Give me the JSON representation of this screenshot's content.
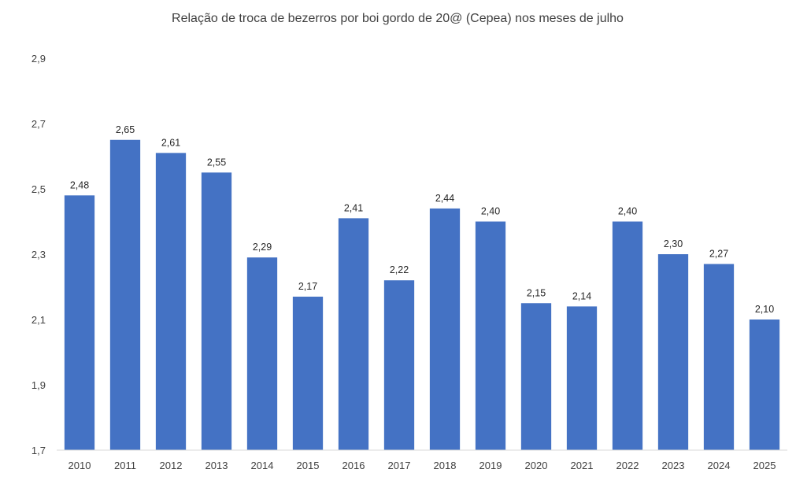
{
  "chart_data": {
    "type": "bar",
    "title": "Relação de troca de bezerros por boi gordo de 20@ (Cepea) nos meses de julho",
    "xlabel": "",
    "ylabel": "",
    "categories": [
      "2010",
      "2011",
      "2012",
      "2013",
      "2014",
      "2015",
      "2016",
      "2017",
      "2018",
      "2019",
      "2020",
      "2021",
      "2022",
      "2023",
      "2024",
      "2025"
    ],
    "values": [
      2.48,
      2.65,
      2.61,
      2.55,
      2.29,
      2.17,
      2.41,
      2.22,
      2.44,
      2.4,
      2.15,
      2.14,
      2.4,
      2.3,
      2.27,
      2.1
    ],
    "value_labels": [
      "2,48",
      "2,65",
      "2,61",
      "2,55",
      "2,29",
      "2,17",
      "2,41",
      "2,22",
      "2,44",
      "2,40",
      "2,15",
      "2,14",
      "2,40",
      "2,30",
      "2,27",
      "2,10"
    ],
    "ylim": [
      1.7,
      2.9
    ],
    "y_ticks": [
      1.7,
      1.9,
      2.1,
      2.3,
      2.5,
      2.7,
      2.9
    ],
    "y_tick_labels": [
      "1,7",
      "1,9",
      "2,1",
      "2,3",
      "2,5",
      "2,7",
      "2,9"
    ],
    "bar_color": "#4472C4",
    "axis_color": "#D9D9D9",
    "grid": false,
    "legend": "none"
  }
}
